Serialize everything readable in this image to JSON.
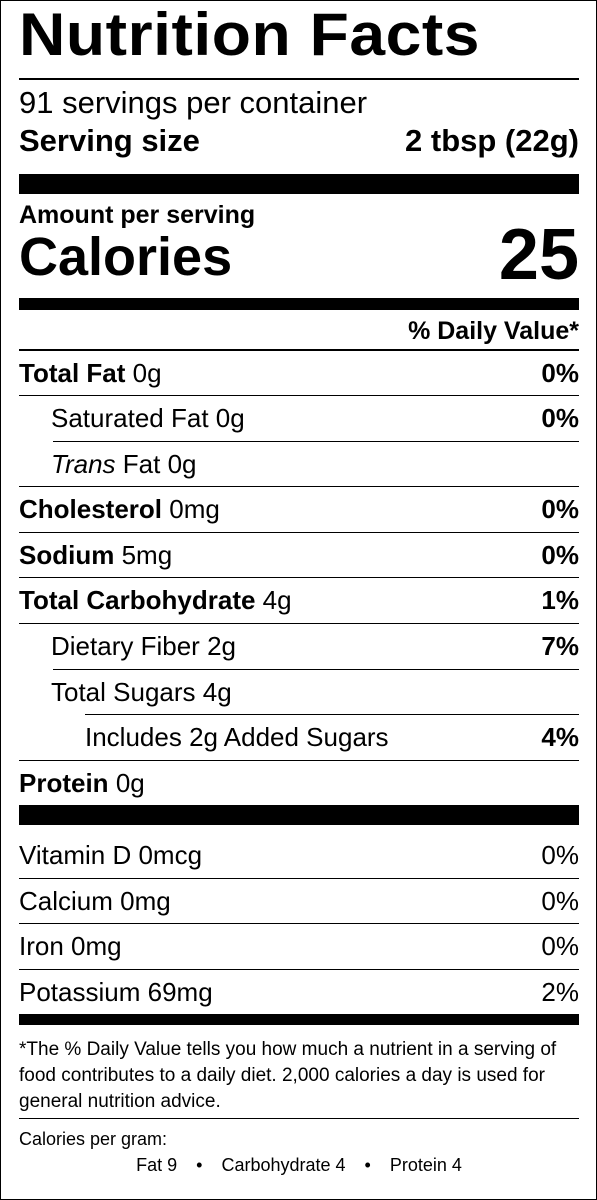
{
  "title": "Nutrition Facts",
  "servings_per_container": "91 servings per container",
  "serving_size_label": "Serving size",
  "serving_size_value": "2 tbsp (22g)",
  "amount_per_serving": "Amount per serving",
  "calories_label": "Calories",
  "calories_value": "25",
  "daily_value_header": "% Daily Value*",
  "nutrients": [
    {
      "name": "Total Fat",
      "amount": "0g",
      "dv": "0%"
    },
    {
      "name": "Saturated Fat",
      "amount": "0g",
      "dv": "0%"
    },
    {
      "name_italic": "Trans",
      "name": "Fat",
      "amount": "0g",
      "dv": ""
    },
    {
      "name": "Cholesterol",
      "amount": "0mg",
      "dv": "0%"
    },
    {
      "name": "Sodium",
      "amount": "5mg",
      "dv": "0%"
    },
    {
      "name": "Total Carbohydrate",
      "amount": "4g",
      "dv": "1%"
    },
    {
      "name": "Dietary Fiber",
      "amount": "2g",
      "dv": "7%"
    },
    {
      "name": "Total Sugars",
      "amount": "4g",
      "dv": ""
    },
    {
      "name": "Includes 2g Added Sugars",
      "amount": "",
      "dv": "4%"
    },
    {
      "name": "Protein",
      "amount": "0g",
      "dv": ""
    }
  ],
  "vitamins": [
    {
      "name": "Vitamin D",
      "amount": "0mcg",
      "dv": "0%"
    },
    {
      "name": "Calcium",
      "amount": "0mg",
      "dv": "0%"
    },
    {
      "name": "Iron",
      "amount": "0mg",
      "dv": "0%"
    },
    {
      "name": "Potassium",
      "amount": "69mg",
      "dv": "2%"
    }
  ],
  "footnote": "*The % Daily Value tells you how much a nutrient in a serving of food contributes to a daily diet. 2,000 calories a day is used for general nutrition advice.",
  "calories_per_gram_label": "Calories per gram:",
  "calories_per_gram": {
    "fat": "Fat 9",
    "carbohydrate": "Carbohydrate 4",
    "protein": "Protein 4",
    "separator": "•"
  }
}
